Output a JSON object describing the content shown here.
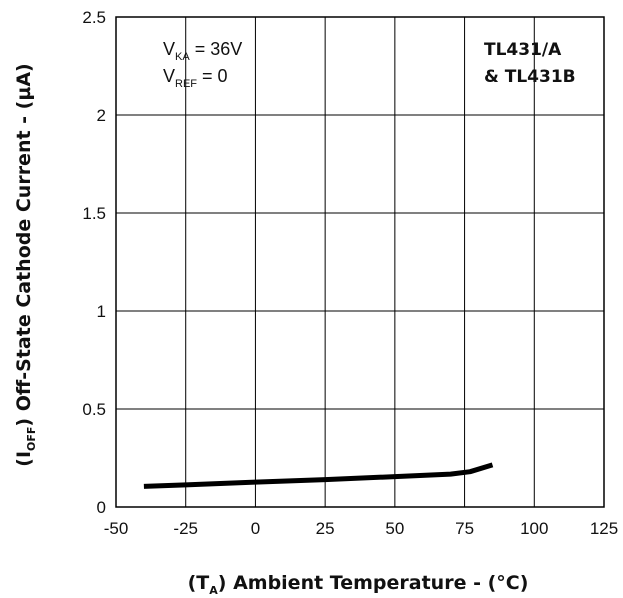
{
  "chart_data": {
    "type": "line",
    "xlabel": {
      "prefix": "(T",
      "sub": "A",
      "suffix": ")  Ambient Temperature - (°C)"
    },
    "ylabel": {
      "prefix": "(I",
      "sub": "OFF",
      "suffix": ")  Off-State Cathode Current - (µA)"
    },
    "xlim": [
      -50,
      125
    ],
    "ylim": [
      0,
      2.5
    ],
    "x_ticks": [
      -50,
      -25,
      0,
      25,
      50,
      75,
      100,
      125
    ],
    "x_tick_labels": [
      "-50",
      "-25",
      "0",
      "25",
      "50",
      "75",
      "100",
      "125"
    ],
    "y_ticks": [
      0,
      0.5,
      1,
      1.5,
      2,
      2.5
    ],
    "y_tick_labels": [
      "0",
      "0.5",
      "1",
      "1.5",
      "2",
      "2.5"
    ],
    "grid": true,
    "conditions": [
      {
        "main": "V",
        "sub": "KA",
        "rest": " = 36V"
      },
      {
        "main": "V",
        "sub": "REF",
        "rest": " = 0"
      }
    ],
    "device_labels": [
      "TL431/A",
      "& TL431B"
    ],
    "series": [
      {
        "x": [
          -40,
          -25,
          0,
          25,
          50,
          70,
          77,
          85
        ],
        "y": [
          0.105,
          0.113,
          0.127,
          0.14,
          0.155,
          0.168,
          0.18,
          0.215
        ]
      }
    ],
    "line_color": "#000000"
  }
}
